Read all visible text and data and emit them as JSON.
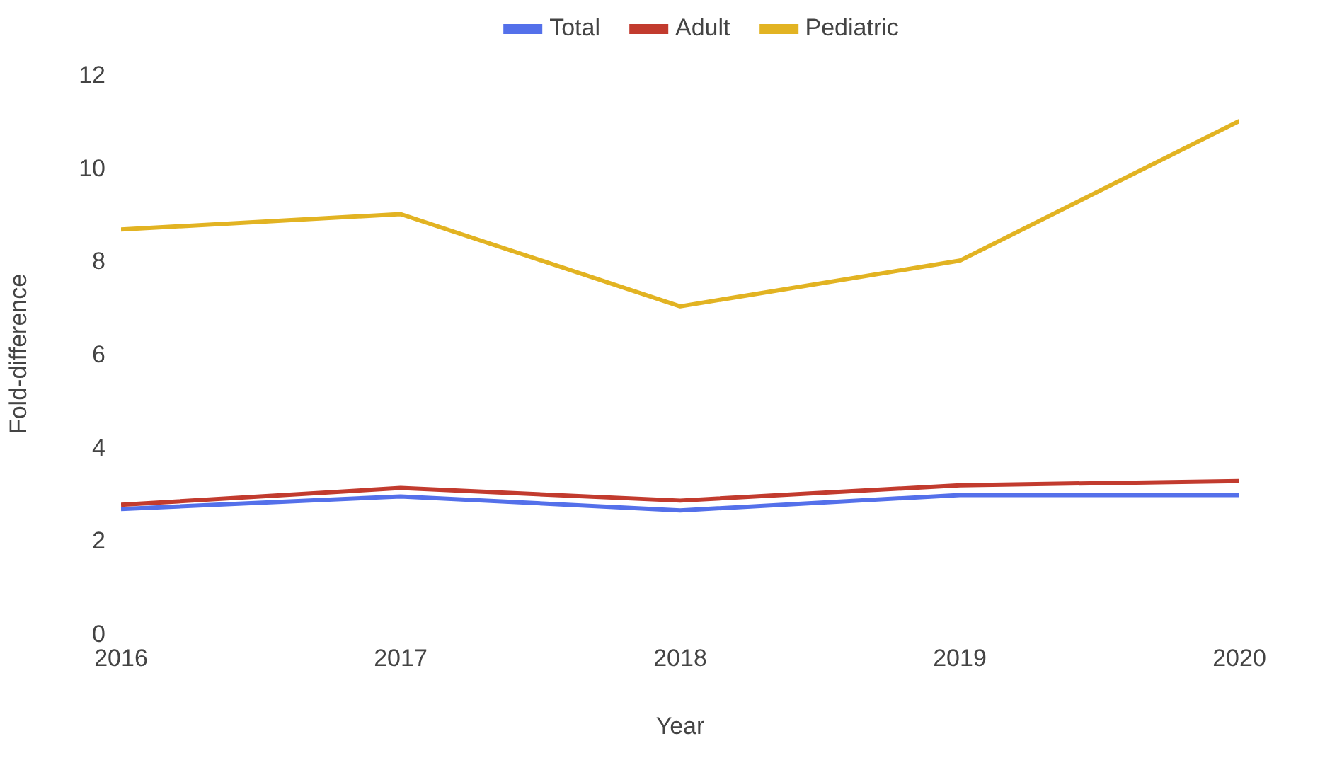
{
  "chart_data": {
    "type": "line",
    "xlabel": "Year",
    "ylabel": "Fold-difference",
    "x": [
      2016,
      2017,
      2018,
      2019,
      2020
    ],
    "series": [
      {
        "name": "Total",
        "color": "#5470ea",
        "values": [
          2.67,
          2.94,
          2.64,
          2.97,
          2.97
        ]
      },
      {
        "name": "Adult",
        "color": "#c23b2e",
        "values": [
          2.76,
          3.12,
          2.85,
          3.18,
          3.27
        ]
      },
      {
        "name": "Pediatric",
        "color": "#e2b322",
        "values": [
          8.67,
          9.0,
          7.02,
          8.0,
          11.0
        ]
      }
    ],
    "xlim": [
      2016,
      2020
    ],
    "xticks": [
      2016,
      2017,
      2018,
      2019,
      2020
    ],
    "ylim": [
      0,
      12
    ],
    "yticks": [
      0,
      2,
      4,
      6,
      8,
      10,
      12
    ],
    "grid": false,
    "legend": "top",
    "marker": "none",
    "line_style": "solid"
  }
}
